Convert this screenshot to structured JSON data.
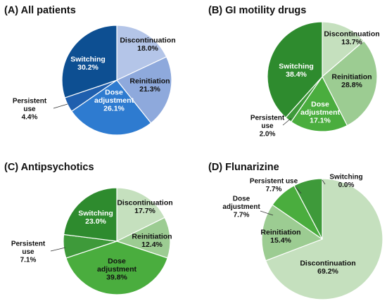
{
  "chart_data": [
    {
      "type": "pie",
      "title": "(A) All patients",
      "slices": [
        {
          "label": "Discontinuation",
          "value": 18.0,
          "display": "18.0%",
          "color": "#b4c5e8"
        },
        {
          "label": "Reinitiation",
          "value": 21.3,
          "display": "21.3%",
          "color": "#8ea9dc"
        },
        {
          "label": "Dose adjustment",
          "value": 26.1,
          "display": "26.1%",
          "color": "#2e7bd0"
        },
        {
          "label": "Persistent use",
          "value": 4.4,
          "display": "4.4%",
          "color": "#1f5fae"
        },
        {
          "label": "Switching",
          "value": 30.2,
          "display": "30.2%",
          "color": "#0d4f92"
        }
      ]
    },
    {
      "type": "pie",
      "title": "(B) GI motility drugs",
      "slices": [
        {
          "label": "Discontinuation",
          "value": 13.7,
          "display": "13.7%",
          "color": "#c5e0be"
        },
        {
          "label": "Reinitiation",
          "value": 28.8,
          "display": "28.8%",
          "color": "#9ccc92"
        },
        {
          "label": "Dose adjustment",
          "value": 17.1,
          "display": "17.1%",
          "color": "#4aad3e"
        },
        {
          "label": "Persistent use",
          "value": 2.0,
          "display": "2.0%",
          "color": "#3e9a3a"
        },
        {
          "label": "Switching",
          "value": 38.4,
          "display": "38.4%",
          "color": "#2e8b2e"
        }
      ]
    },
    {
      "type": "pie",
      "title": "(C) Antipsychotics",
      "slices": [
        {
          "label": "Discontinuation",
          "value": 17.7,
          "display": "17.7%",
          "color": "#c5e0be"
        },
        {
          "label": "Reinitiation",
          "value": 12.4,
          "display": "12.4%",
          "color": "#9ccc92"
        },
        {
          "label": "Dose adjustment",
          "value": 39.8,
          "display": "39.8%",
          "color": "#4aad3e"
        },
        {
          "label": "Persistent use",
          "value": 7.1,
          "display": "7.1%",
          "color": "#3e9a3a"
        },
        {
          "label": "Switching",
          "value": 23.0,
          "display": "23.0%",
          "color": "#2e8b2e"
        }
      ]
    },
    {
      "type": "pie",
      "title": "(D) Flunarizine",
      "slices": [
        {
          "label": "Discontinuation",
          "value": 69.2,
          "display": "69.2%",
          "color": "#c5e0be"
        },
        {
          "label": "Reinitiation",
          "value": 15.4,
          "display": "15.4%",
          "color": "#9ccc92"
        },
        {
          "label": "Dose adjustment",
          "value": 7.7,
          "display": "7.7%",
          "color": "#4aad3e"
        },
        {
          "label": "Persistent use",
          "value": 7.7,
          "display": "7.7%",
          "color": "#3e9a3a"
        },
        {
          "label": "Switching",
          "value": 0.0,
          "display": "0.0%",
          "color": "#2e8b2e"
        }
      ]
    }
  ]
}
